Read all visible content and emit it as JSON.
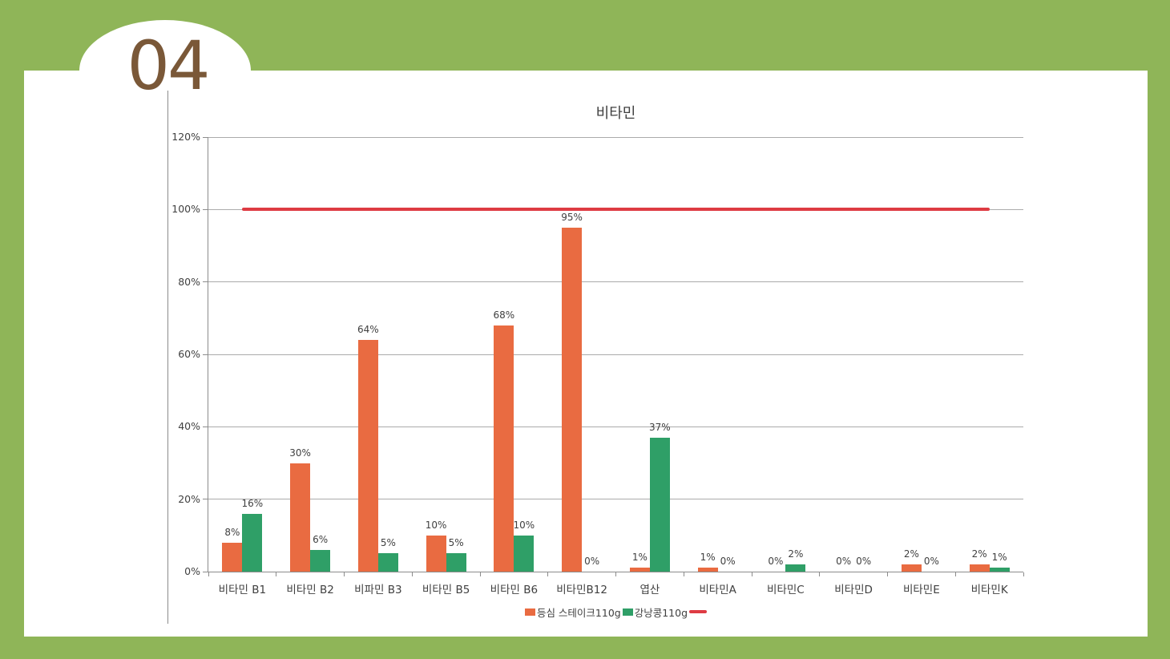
{
  "slide": {
    "section_number": "04",
    "frame_color": "#8FB558",
    "number_color": "#7A5838"
  },
  "chart_data": {
    "type": "bar",
    "title": "비타민",
    "categories": [
      "비타민 B1",
      "비타민 B2",
      "비파민 B3",
      "비타민 B5",
      "비타민 B6",
      "비타민B12",
      "엽산",
      "비타민A",
      "비타민C",
      "비타민D",
      "비타민E",
      "비타민K"
    ],
    "series": [
      {
        "name": "등심 스테이크110g",
        "type": "bar",
        "color": "#E96B41",
        "values": [
          8,
          30,
          64,
          10,
          68,
          95,
          1,
          1,
          0,
          0,
          2,
          2
        ]
      },
      {
        "name": "강낭콩110g",
        "type": "bar",
        "color": "#2F9F67",
        "values": [
          16,
          6,
          5,
          5,
          10,
          0,
          37,
          0,
          2,
          0,
          0,
          1
        ]
      },
      {
        "name": "",
        "type": "line",
        "color": "#DE3B43",
        "value": 100
      }
    ],
    "ylim": [
      0,
      120
    ],
    "ytick_step": 20,
    "ytick_suffix": "%",
    "value_label_suffix": "%",
    "grid": true,
    "legend_position": "bottom",
    "text_color": "#404040",
    "gridline_color": "#ABABAB",
    "axis_color": "#8C8C8C"
  }
}
